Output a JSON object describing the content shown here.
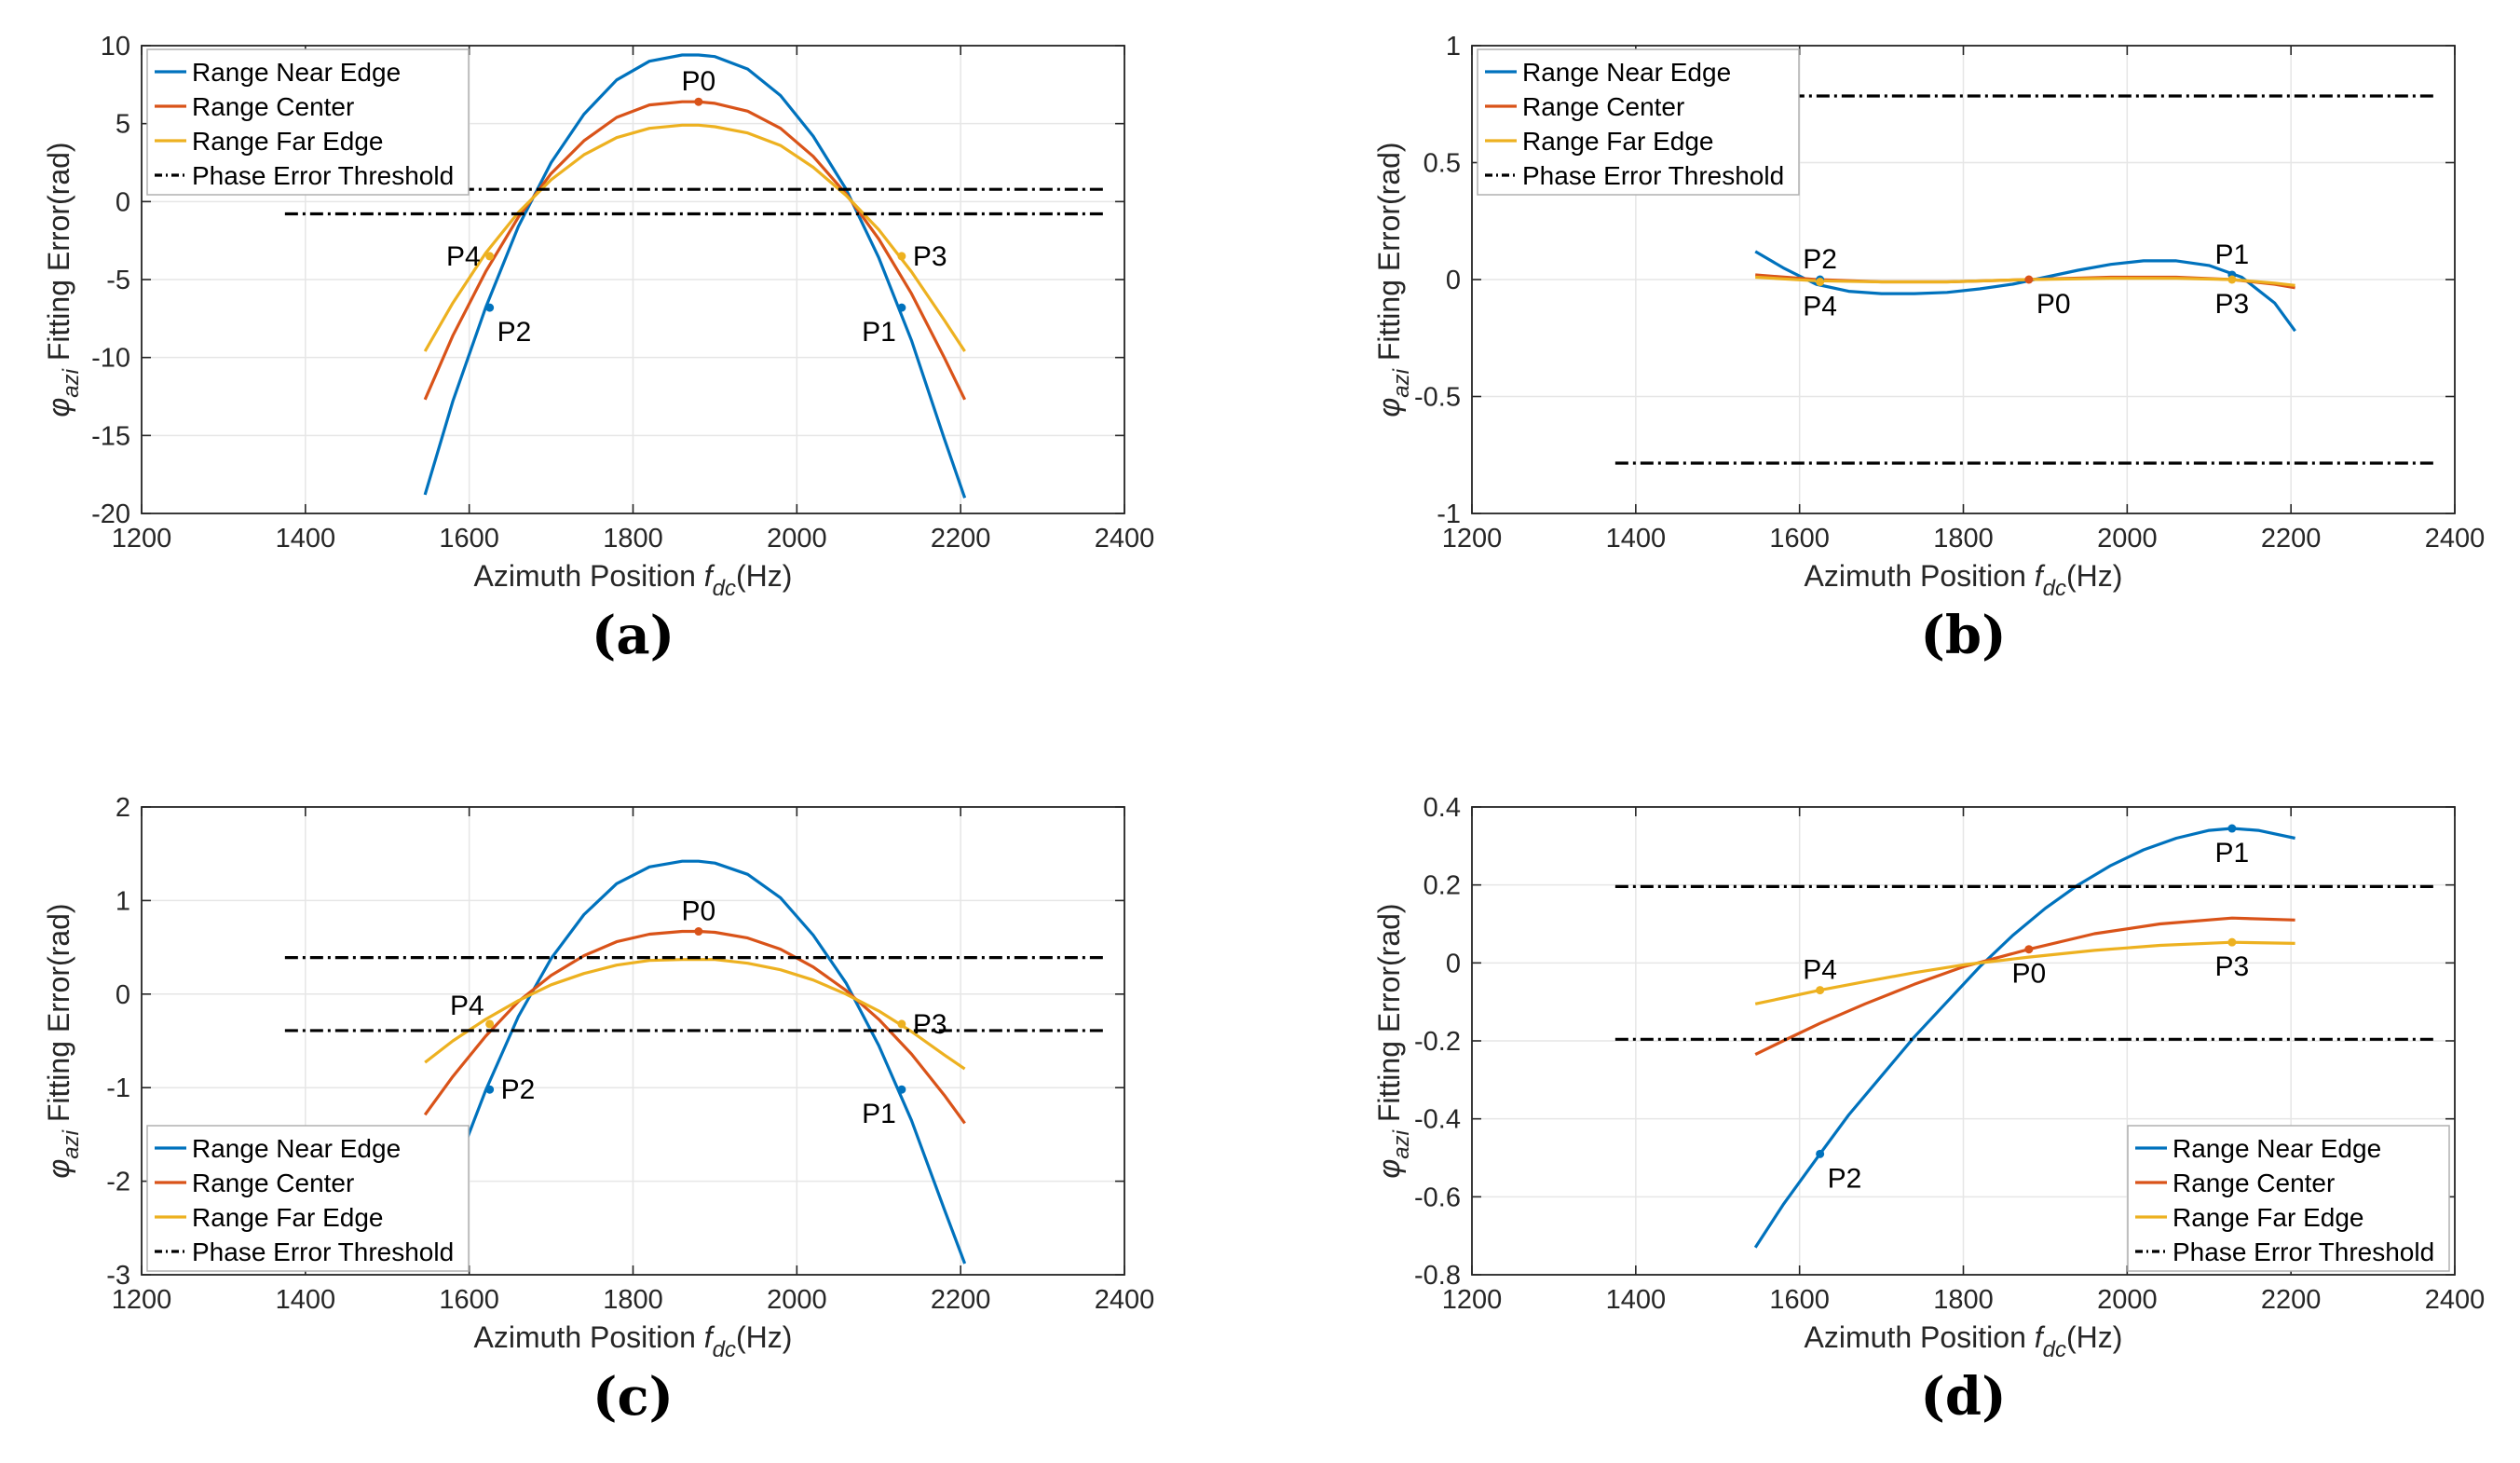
{
  "figure": {
    "colors": {
      "near": "#0072BD",
      "center": "#D95319",
      "far": "#EDB120",
      "threshold": "#000000",
      "grid": "#e6e6e6",
      "axis": "#262626"
    }
  },
  "chart_data": [
    {
      "panel_label": "(a)",
      "type": "line",
      "xlabel": "Azimuth Position f_dc(Hz)",
      "ylabel": "φ_azi Fitting Error(rad)",
      "xlim": [
        1200,
        2400
      ],
      "ylim": [
        -20,
        10
      ],
      "xticks": [
        1200,
        1400,
        1600,
        1800,
        2000,
        2200,
        2400
      ],
      "yticks": [
        -20,
        -15,
        -10,
        -5,
        0,
        5,
        10
      ],
      "ytick_labels": [
        "-20",
        "-15",
        "-10",
        "-5",
        "0",
        "5",
        "10"
      ],
      "grid": true,
      "legend_position": "top-left",
      "series": [
        {
          "name": "Range Near Edge",
          "color_key": "near",
          "x": [
            1546,
            1580,
            1620,
            1660,
            1700,
            1740,
            1780,
            1820,
            1860,
            1880,
            1900,
            1940,
            1980,
            2020,
            2060,
            2100,
            2140,
            2180,
            2205
          ],
          "y": [
            -18.8,
            -12.8,
            -6.8,
            -1.6,
            2.5,
            5.6,
            7.8,
            9.0,
            9.4,
            9.4,
            9.3,
            8.5,
            6.8,
            4.2,
            0.8,
            -3.6,
            -8.9,
            -15.2,
            -19.0
          ]
        },
        {
          "name": "Range Center",
          "color_key": "center",
          "x": [
            1546,
            1580,
            1620,
            1660,
            1700,
            1740,
            1780,
            1820,
            1860,
            1880,
            1900,
            1940,
            1980,
            2020,
            2060,
            2100,
            2140,
            2180,
            2205
          ],
          "y": [
            -12.7,
            -8.6,
            -4.5,
            -1.0,
            1.8,
            3.9,
            5.4,
            6.2,
            6.4,
            6.4,
            6.3,
            5.8,
            4.7,
            2.9,
            0.5,
            -2.4,
            -5.9,
            -10.0,
            -12.7
          ]
        },
        {
          "name": "Range Far Edge",
          "color_key": "far",
          "x": [
            1546,
            1580,
            1620,
            1660,
            1700,
            1740,
            1780,
            1820,
            1860,
            1880,
            1900,
            1940,
            1980,
            2020,
            2060,
            2100,
            2140,
            2180,
            2205
          ],
          "y": [
            -9.6,
            -6.5,
            -3.3,
            -0.7,
            1.4,
            3.0,
            4.1,
            4.7,
            4.9,
            4.9,
            4.8,
            4.4,
            3.6,
            2.2,
            0.4,
            -1.8,
            -4.5,
            -7.6,
            -9.6
          ]
        },
        {
          "name": "Phase Error Threshold",
          "color_key": "threshold",
          "dashed": true,
          "hlines": [
            0.785,
            -0.785
          ],
          "x": [
            1375,
            2375
          ]
        }
      ],
      "markers": [
        {
          "label": "P0",
          "x": 1880,
          "y": 6.4,
          "color_key": "center",
          "label_side": "top"
        },
        {
          "label": "P1",
          "x": 2128,
          "y": -6.8,
          "color_key": "near",
          "label_side": "bottom-left"
        },
        {
          "label": "P2",
          "x": 1625,
          "y": -6.8,
          "color_key": "near",
          "label_side": "bottom-right"
        },
        {
          "label": "P3",
          "x": 2128,
          "y": -3.5,
          "color_key": "far",
          "label_side": "right"
        },
        {
          "label": "P4",
          "x": 1625,
          "y": -3.5,
          "color_key": "far",
          "label_side": "left"
        }
      ]
    },
    {
      "panel_label": "(b)",
      "type": "line",
      "xlabel": "Azimuth Position f_dc(Hz)",
      "ylabel": "φ_azi Fitting Error(rad)",
      "xlim": [
        1200,
        2400
      ],
      "ylim": [
        -1,
        1
      ],
      "xticks": [
        1200,
        1400,
        1600,
        1800,
        2000,
        2200,
        2400
      ],
      "yticks": [
        -1,
        -0.5,
        0,
        0.5,
        1
      ],
      "ytick_labels": [
        "-1",
        "-0.5",
        "0",
        "0.5",
        "1"
      ],
      "grid": true,
      "legend_position": "top-left",
      "series": [
        {
          "name": "Range Near Edge",
          "color_key": "near",
          "x": [
            1546,
            1580,
            1620,
            1660,
            1700,
            1740,
            1780,
            1820,
            1860,
            1900,
            1940,
            1980,
            2020,
            2060,
            2100,
            2140,
            2180,
            2205
          ],
          "y": [
            0.12,
            0.05,
            -0.02,
            -0.05,
            -0.06,
            -0.06,
            -0.055,
            -0.04,
            -0.02,
            0.01,
            0.04,
            0.065,
            0.08,
            0.08,
            0.06,
            0.01,
            -0.1,
            -0.22
          ]
        },
        {
          "name": "Range Center",
          "color_key": "center",
          "x": [
            1546,
            1620,
            1700,
            1780,
            1880,
            1980,
            2060,
            2128,
            2180,
            2205
          ],
          "y": [
            0.02,
            0.0,
            -0.01,
            -0.01,
            0.0,
            0.01,
            0.01,
            0.0,
            -0.02,
            -0.035
          ]
        },
        {
          "name": "Range Far Edge",
          "color_key": "far",
          "x": [
            1546,
            1620,
            1700,
            1780,
            1880,
            1980,
            2060,
            2128,
            2180,
            2205
          ],
          "y": [
            0.01,
            -0.005,
            -0.01,
            -0.01,
            0.0,
            0.005,
            0.005,
            0.0,
            -0.015,
            -0.025
          ]
        },
        {
          "name": "Phase Error Threshold",
          "color_key": "threshold",
          "dashed": true,
          "hlines": [
            0.785,
            -0.785
          ],
          "x": [
            1375,
            2375
          ]
        }
      ],
      "markers": [
        {
          "label": "P0",
          "x": 1880,
          "y": 0.0,
          "color_key": "center",
          "label_side": "bottom-right"
        },
        {
          "label": "P1",
          "x": 2128,
          "y": 0.02,
          "color_key": "near",
          "label_side": "top"
        },
        {
          "label": "P2",
          "x": 1625,
          "y": 0.0,
          "color_key": "near",
          "label_side": "top"
        },
        {
          "label": "P3",
          "x": 2128,
          "y": 0.0,
          "color_key": "far",
          "label_side": "bottom"
        },
        {
          "label": "P4",
          "x": 1625,
          "y": -0.01,
          "color_key": "far",
          "label_side": "bottom"
        }
      ]
    },
    {
      "panel_label": "(c)",
      "type": "line",
      "xlabel": "Azimuth Position f_dc(Hz)",
      "ylabel": "φ_azi Fitting Error(rad)",
      "xlim": [
        1200,
        2400
      ],
      "ylim": [
        -3,
        2
      ],
      "xticks": [
        1200,
        1400,
        1600,
        1800,
        2000,
        2200,
        2400
      ],
      "yticks": [
        -3,
        -2,
        -1,
        0,
        1,
        2
      ],
      "ytick_labels": [
        "-3",
        "-2",
        "-1",
        "0",
        "1",
        "2"
      ],
      "grid": true,
      "legend_position": "bottom-left",
      "series": [
        {
          "name": "Range Near Edge",
          "color_key": "near",
          "x": [
            1546,
            1580,
            1620,
            1660,
            1700,
            1740,
            1780,
            1820,
            1860,
            1880,
            1900,
            1940,
            1980,
            2020,
            2060,
            2100,
            2140,
            2180,
            2205
          ],
          "y": [
            -2.84,
            -1.94,
            -1.03,
            -0.24,
            0.38,
            0.85,
            1.18,
            1.36,
            1.42,
            1.42,
            1.4,
            1.28,
            1.03,
            0.63,
            0.12,
            -0.55,
            -1.35,
            -2.3,
            -2.88
          ]
        },
        {
          "name": "Range Center",
          "color_key": "center",
          "x": [
            1546,
            1580,
            1620,
            1660,
            1700,
            1740,
            1780,
            1820,
            1860,
            1880,
            1900,
            1940,
            1980,
            2020,
            2060,
            2100,
            2140,
            2180,
            2205
          ],
          "y": [
            -1.29,
            -0.88,
            -0.45,
            -0.08,
            0.2,
            0.41,
            0.56,
            0.64,
            0.67,
            0.67,
            0.66,
            0.6,
            0.48,
            0.29,
            0.04,
            -0.27,
            -0.64,
            -1.08,
            -1.38
          ]
        },
        {
          "name": "Range Far Edge",
          "color_key": "far",
          "x": [
            1546,
            1580,
            1620,
            1660,
            1700,
            1740,
            1780,
            1820,
            1860,
            1880,
            1900,
            1940,
            1980,
            2020,
            2060,
            2100,
            2140,
            2180,
            2205
          ],
          "y": [
            -0.73,
            -0.5,
            -0.27,
            -0.07,
            0.1,
            0.22,
            0.31,
            0.36,
            0.37,
            0.37,
            0.37,
            0.33,
            0.26,
            0.15,
            0.0,
            -0.18,
            -0.4,
            -0.65,
            -0.8
          ]
        },
        {
          "name": "Phase Error Threshold",
          "color_key": "threshold",
          "dashed": true,
          "hlines": [
            0.39,
            -0.39
          ],
          "x": [
            1375,
            2375
          ]
        }
      ],
      "markers": [
        {
          "label": "P0",
          "x": 1880,
          "y": 0.67,
          "color_key": "center",
          "label_side": "top"
        },
        {
          "label": "P1",
          "x": 2128,
          "y": -1.02,
          "color_key": "near",
          "label_side": "bottom-left"
        },
        {
          "label": "P2",
          "x": 1625,
          "y": -1.02,
          "color_key": "near",
          "label_side": "right"
        },
        {
          "label": "P3",
          "x": 2128,
          "y": -0.32,
          "color_key": "far",
          "label_side": "right"
        },
        {
          "label": "P4",
          "x": 1625,
          "y": -0.32,
          "color_key": "far",
          "label_side": "top-left"
        }
      ]
    },
    {
      "panel_label": "(d)",
      "type": "line",
      "xlabel": "Azimuth Position f_dc(Hz)",
      "ylabel": "φ_azi Fitting Error(rad)",
      "xlim": [
        1200,
        2400
      ],
      "ylim": [
        -0.8,
        0.4
      ],
      "xticks": [
        1200,
        1400,
        1600,
        1800,
        2000,
        2200,
        2400
      ],
      "yticks": [
        -0.8,
        -0.6,
        -0.4,
        -0.2,
        0,
        0.2,
        0.4
      ],
      "ytick_labels": [
        "-0.8",
        "-0.6",
        "-0.4",
        "-0.2",
        "0",
        "0.2",
        "0.4"
      ],
      "grid": true,
      "legend_position": "bottom-right",
      "series": [
        {
          "name": "Range Near Edge",
          "color_key": "near",
          "x": [
            1546,
            1580,
            1625,
            1660,
            1700,
            1740,
            1780,
            1820,
            1860,
            1900,
            1940,
            1980,
            2020,
            2060,
            2100,
            2128,
            2160,
            2205
          ],
          "y": [
            -0.73,
            -0.62,
            -0.49,
            -0.39,
            -0.29,
            -0.19,
            -0.1,
            -0.01,
            0.07,
            0.14,
            0.2,
            0.25,
            0.29,
            0.32,
            0.34,
            0.345,
            0.34,
            0.32
          ]
        },
        {
          "name": "Range Center",
          "color_key": "center",
          "x": [
            1546,
            1580,
            1625,
            1680,
            1740,
            1800,
            1880,
            1960,
            2040,
            2128,
            2205
          ],
          "y": [
            -0.235,
            -0.2,
            -0.155,
            -0.105,
            -0.055,
            -0.01,
            0.035,
            0.075,
            0.1,
            0.115,
            0.11
          ]
        },
        {
          "name": "Range Far Edge",
          "color_key": "far",
          "x": [
            1546,
            1580,
            1625,
            1680,
            1740,
            1800,
            1880,
            1960,
            2040,
            2128,
            2205
          ],
          "y": [
            -0.105,
            -0.09,
            -0.07,
            -0.048,
            -0.025,
            -0.005,
            0.015,
            0.032,
            0.045,
            0.053,
            0.05
          ]
        },
        {
          "name": "Phase Error Threshold",
          "color_key": "threshold",
          "dashed": true,
          "hlines": [
            0.196,
            -0.196
          ],
          "x": [
            1375,
            2375
          ]
        }
      ],
      "markers": [
        {
          "label": "P0",
          "x": 1880,
          "y": 0.035,
          "color_key": "center",
          "label_side": "bottom"
        },
        {
          "label": "P1",
          "x": 2128,
          "y": 0.345,
          "color_key": "near",
          "label_side": "bottom"
        },
        {
          "label": "P2",
          "x": 1625,
          "y": -0.49,
          "color_key": "near",
          "label_side": "bottom-right"
        },
        {
          "label": "P3",
          "x": 2128,
          "y": 0.053,
          "color_key": "far",
          "label_side": "bottom"
        },
        {
          "label": "P4",
          "x": 1625,
          "y": -0.07,
          "color_key": "far",
          "label_side": "top"
        }
      ]
    }
  ]
}
